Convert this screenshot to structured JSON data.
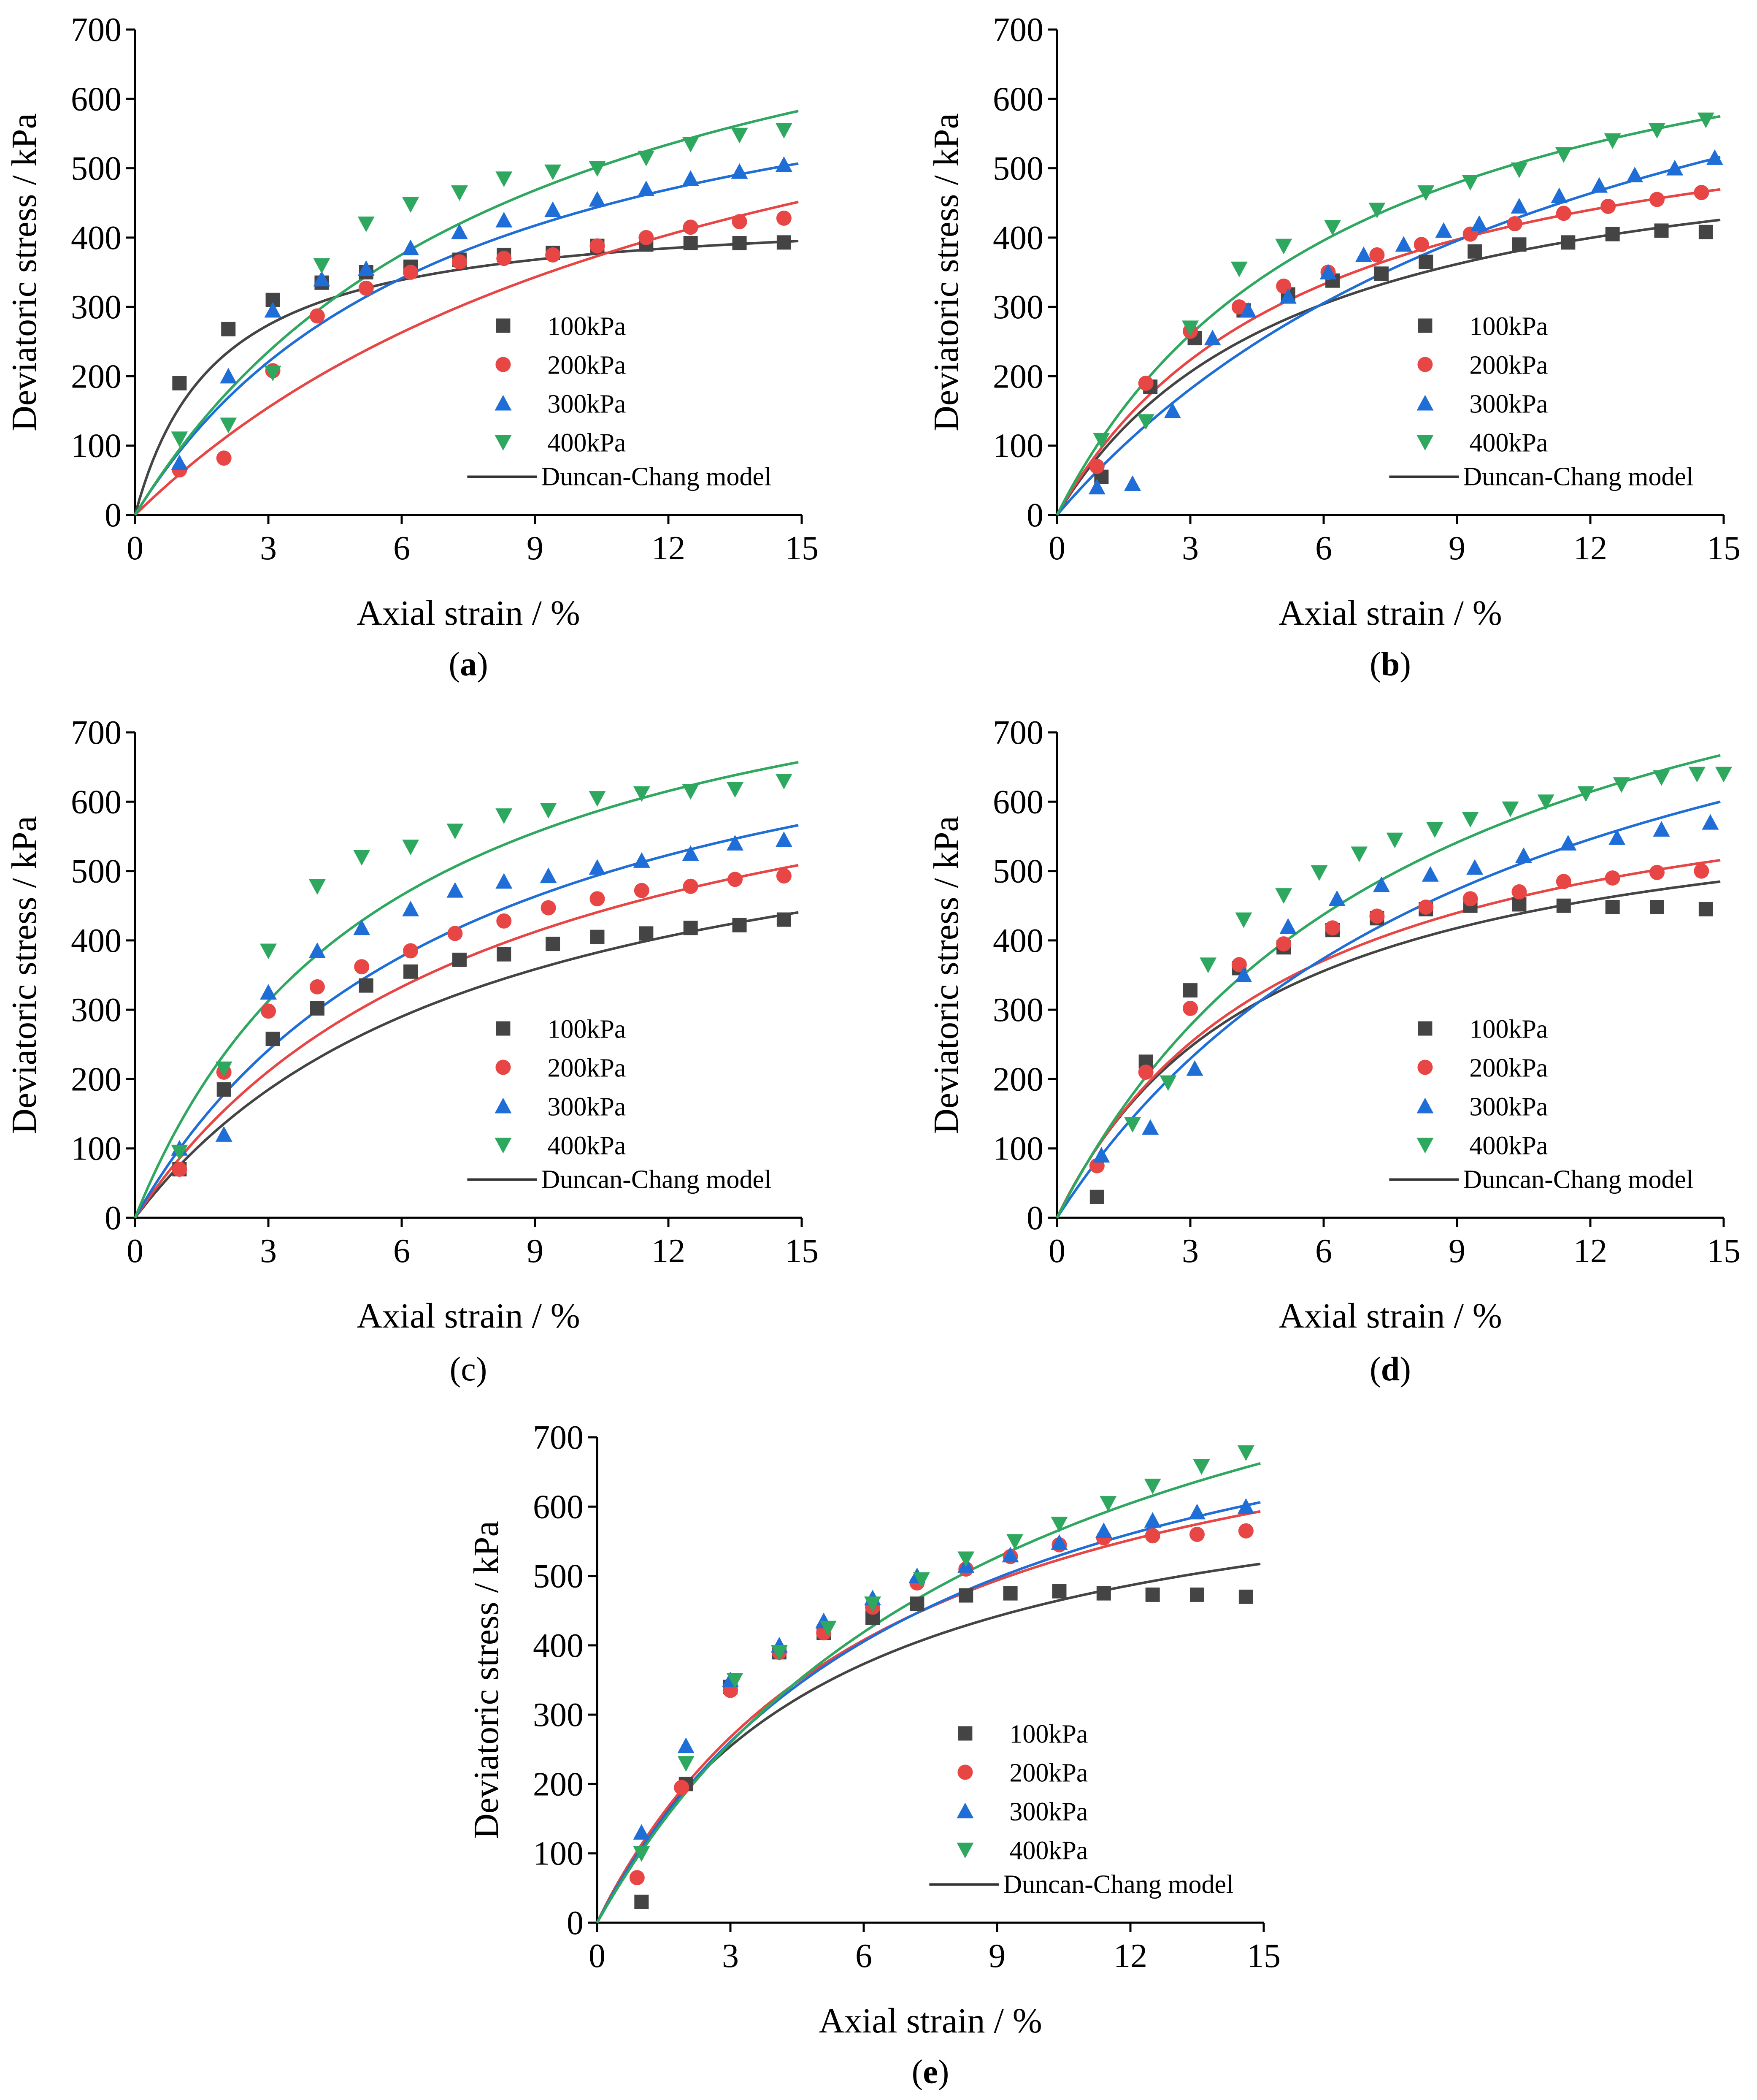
{
  "colors": {
    "s100": "#444444",
    "s200": "#e84545",
    "s300": "#1f6ed8",
    "s400": "#2fa85f",
    "model": "#333333"
  },
  "chart_data": [
    {
      "panel": "(a)",
      "panel_bold": "a",
      "type": "scatter",
      "xlabel": "Axial strain / %",
      "ylabel": "Deviatoric stress / kPa",
      "xlim": [
        0,
        15
      ],
      "ylim": [
        0,
        700
      ],
      "xticks": [
        "0",
        "3",
        "6",
        "9",
        "12",
        "15"
      ],
      "yticks": [
        "0",
        "100",
        "200",
        "300",
        "400",
        "500",
        "600",
        "700"
      ],
      "legend": [
        "100kPa",
        "200kPa",
        "300kPa",
        "400kPa",
        "Duncan-Chang model"
      ],
      "series": [
        {
          "name": "100kPa",
          "marker": "square",
          "color_key": "s100",
          "x": [
            1.0,
            2.1,
            3.1,
            4.2,
            5.2,
            6.2,
            7.3,
            8.3,
            9.4,
            10.4,
            11.5,
            12.5,
            13.6,
            14.6
          ],
          "y": [
            190,
            268,
            310,
            335,
            350,
            358,
            368,
            375,
            378,
            388,
            390,
            392,
            392,
            393
          ],
          "fit_a": 0.0042,
          "fit_b": 0.00225
        },
        {
          "name": "200kPa",
          "marker": "circle",
          "color_key": "s200",
          "x": [
            1.0,
            2.0,
            3.1,
            4.1,
            5.2,
            6.2,
            7.3,
            8.3,
            9.4,
            10.4,
            11.5,
            12.5,
            13.6,
            14.6
          ],
          "y": [
            65,
            82,
            208,
            287,
            327,
            350,
            365,
            370,
            375,
            388,
            400,
            415,
            423,
            428
          ],
          "fit_a": 0.0159,
          "fit_b": 0.00115
        },
        {
          "name": "300kPa",
          "marker": "triangle-up",
          "color_key": "s300",
          "x": [
            1.0,
            2.1,
            3.1,
            4.2,
            5.2,
            6.2,
            7.3,
            8.3,
            9.4,
            10.4,
            11.5,
            12.5,
            13.6,
            14.6
          ],
          "y": [
            75,
            200,
            295,
            340,
            355,
            385,
            408,
            425,
            440,
            455,
            470,
            485,
            495,
            505
          ],
          "fit_a": 0.0096,
          "fit_b": 0.00133
        },
        {
          "name": "400kPa",
          "marker": "triangle-down",
          "color_key": "s400",
          "x": [
            1.0,
            2.1,
            3.1,
            4.2,
            5.2,
            6.2,
            7.3,
            8.3,
            9.4,
            10.4,
            11.5,
            12.5,
            13.6,
            14.6
          ],
          "y": [
            110,
            130,
            205,
            360,
            420,
            448,
            465,
            485,
            495,
            500,
            515,
            535,
            548,
            555
          ],
          "fit_a": 0.0095,
          "fit_b": 0.00108
        }
      ]
    },
    {
      "panel": "(b)",
      "panel_bold": "b",
      "type": "scatter",
      "xlabel": "Axial strain / %",
      "ylabel": "Deviatoric stress / kPa",
      "xlim": [
        0,
        15
      ],
      "ylim": [
        0,
        700
      ],
      "xticks": [
        "0",
        "3",
        "6",
        "9",
        "12",
        "15"
      ],
      "yticks": [
        "0",
        "100",
        "200",
        "300",
        "400",
        "500",
        "600",
        "700"
      ],
      "legend": [
        "100kPa",
        "200kPa",
        "300kPa",
        "400kPa",
        "Duncan-Chang model"
      ],
      "series": [
        {
          "name": "100kPa",
          "marker": "square",
          "color_key": "s100",
          "x": [
            1.0,
            2.1,
            3.1,
            4.2,
            5.2,
            6.2,
            7.3,
            8.3,
            9.4,
            10.4,
            11.5,
            12.5,
            13.6,
            14.6
          ],
          "y": [
            55,
            185,
            255,
            295,
            318,
            338,
            348,
            365,
            380,
            390,
            393,
            405,
            410,
            408
          ],
          "fit_a": 0.0094,
          "fit_b": 0.00172
        },
        {
          "name": "200kPa",
          "marker": "circle",
          "color_key": "s200",
          "x": [
            0.9,
            2.0,
            3.0,
            4.1,
            5.1,
            6.1,
            7.2,
            8.2,
            9.3,
            10.3,
            11.4,
            12.4,
            13.5,
            14.5
          ],
          "y": [
            70,
            190,
            265,
            300,
            330,
            350,
            375,
            390,
            405,
            420,
            435,
            445,
            455,
            465
          ],
          "fit_a": 0.0088,
          "fit_b": 0.00154
        },
        {
          "name": "300kPa",
          "marker": "triangle-up",
          "color_key": "s300",
          "x": [
            0.9,
            1.7,
            2.6,
            3.5,
            4.3,
            5.2,
            6.1,
            6.9,
            7.8,
            8.7,
            9.5,
            10.4,
            11.3,
            12.2,
            13.0,
            13.9,
            14.8
          ],
          "y": [
            40,
            45,
            150,
            255,
            295,
            315,
            350,
            375,
            390,
            410,
            420,
            445,
            460,
            475,
            490,
            500,
            515
          ],
          "fit_a": 0.0134,
          "fit_b": 0.00104
        },
        {
          "name": "400kPa",
          "marker": "triangle-down",
          "color_key": "s400",
          "x": [
            1.0,
            2.0,
            3.0,
            4.1,
            5.1,
            6.2,
            7.2,
            8.3,
            9.3,
            10.4,
            11.4,
            12.5,
            13.5,
            14.6
          ],
          "y": [
            108,
            135,
            270,
            355,
            388,
            415,
            440,
            465,
            480,
            498,
            520,
            540,
            555,
            570
          ],
          "fit_a": 0.0079,
          "fit_b": 0.00121
        }
      ]
    },
    {
      "panel": "(c)",
      "panel_bold": "",
      "type": "scatter",
      "xlabel": "Axial strain / %",
      "ylabel": "Deviatoric stress / kPa",
      "xlim": [
        0,
        15
      ],
      "ylim": [
        0,
        700
      ],
      "xticks": [
        "0",
        "3",
        "6",
        "9",
        "12",
        "15"
      ],
      "yticks": [
        "0",
        "100",
        "200",
        "300",
        "400",
        "500",
        "600",
        "700"
      ],
      "legend": [
        "100kPa",
        "200kPa",
        "300kPa",
        "400kPa",
        "Duncan-Chang model"
      ],
      "series": [
        {
          "name": "100kPa",
          "marker": "square",
          "color_key": "s100",
          "x": [
            1.0,
            2.0,
            3.1,
            4.1,
            5.2,
            6.2,
            7.3,
            8.3,
            9.4,
            10.4,
            11.5,
            12.5,
            13.6,
            14.6
          ],
          "y": [
            70,
            185,
            258,
            302,
            335,
            355,
            372,
            380,
            395,
            405,
            410,
            418,
            422,
            430
          ],
          "fit_a": 0.0118,
          "fit_b": 0.00148
        },
        {
          "name": "200kPa",
          "marker": "circle",
          "color_key": "s200",
          "x": [
            1.0,
            2.0,
            3.0,
            4.1,
            5.1,
            6.2,
            7.2,
            8.3,
            9.3,
            10.4,
            11.4,
            12.5,
            13.5,
            14.6
          ],
          "y": [
            70,
            210,
            298,
            333,
            362,
            385,
            410,
            428,
            447,
            460,
            472,
            478,
            488,
            493
          ],
          "fit_a": 0.0104,
          "fit_b": 0.00127
        },
        {
          "name": "300kPa",
          "marker": "triangle-up",
          "color_key": "s300",
          "x": [
            1.0,
            2.0,
            3.0,
            4.1,
            5.1,
            6.2,
            7.2,
            8.3,
            9.3,
            10.4,
            11.4,
            12.5,
            13.5,
            14.6
          ],
          "y": [
            100,
            120,
            325,
            385,
            418,
            445,
            472,
            485,
            493,
            505,
            515,
            525,
            540,
            545
          ],
          "fit_a": 0.0089,
          "fit_b": 0.00117
        },
        {
          "name": "400kPa",
          "marker": "triangle-down",
          "color_key": "s400",
          "x": [
            1.0,
            2.0,
            3.0,
            4.1,
            5.1,
            6.2,
            7.2,
            8.3,
            9.3,
            10.4,
            11.4,
            12.5,
            13.5,
            14.6
          ],
          "y": [
            95,
            215,
            385,
            478,
            520,
            535,
            558,
            580,
            588,
            605,
            612,
            615,
            618,
            630
          ],
          "fit_a": 0.0063,
          "fit_b": 0.0011
        }
      ]
    },
    {
      "panel": "(d)",
      "panel_bold": "d",
      "type": "scatter",
      "xlabel": "Axial strain / %",
      "ylabel": "Deviatoric stress / kPa",
      "xlim": [
        0,
        15
      ],
      "ylim": [
        0,
        700
      ],
      "xticks": [
        "0",
        "3",
        "6",
        "9",
        "12",
        "15"
      ],
      "yticks": [
        "0",
        "100",
        "200",
        "300",
        "400",
        "500",
        "600",
        "700"
      ],
      "legend": [
        "100kPa",
        "200kPa",
        "300kPa",
        "400kPa",
        "Duncan-Chang model"
      ],
      "series": [
        {
          "name": "100kPa",
          "marker": "square",
          "color_key": "s100",
          "x": [
            0.9,
            2.0,
            3.0,
            4.1,
            5.1,
            6.2,
            7.2,
            8.3,
            9.3,
            10.4,
            11.4,
            12.5,
            13.5,
            14.6
          ],
          "y": [
            30,
            225,
            328,
            360,
            390,
            415,
            432,
            445,
            450,
            452,
            450,
            448,
            448,
            445
          ],
          "fit_a": 0.0075,
          "fit_b": 0.00156
        },
        {
          "name": "200kPa",
          "marker": "circle",
          "color_key": "s200",
          "x": [
            0.9,
            2.0,
            3.0,
            4.1,
            5.1,
            6.2,
            7.2,
            8.3,
            9.3,
            10.4,
            11.4,
            12.5,
            13.5,
            14.5
          ],
          "y": [
            75,
            210,
            302,
            365,
            395,
            418,
            435,
            448,
            460,
            470,
            485,
            490,
            498,
            500
          ],
          "fit_a": 0.0076,
          "fit_b": 0.00143
        },
        {
          "name": "300kPa",
          "marker": "triangle-up",
          "color_key": "s300",
          "x": [
            1.0,
            2.1,
            3.1,
            4.2,
            5.2,
            6.3,
            7.3,
            8.4,
            9.4,
            10.5,
            11.5,
            12.6,
            13.6,
            14.7
          ],
          "y": [
            90,
            130,
            215,
            350,
            420,
            460,
            480,
            495,
            505,
            522,
            540,
            548,
            560,
            570
          ],
          "fit_a": 0.0101,
          "fit_b": 0.00099
        },
        {
          "name": "400kPa",
          "marker": "triangle-down",
          "color_key": "s400",
          "x": [
            1.7,
            2.5,
            3.4,
            4.2,
            5.1,
            5.9,
            6.8,
            7.6,
            8.5,
            9.3,
            10.2,
            11.0,
            11.9,
            12.7,
            13.6,
            14.4,
            15.0
          ],
          "y": [
            135,
            195,
            365,
            430,
            465,
            498,
            525,
            545,
            560,
            575,
            590,
            600,
            612,
            625,
            635,
            640,
            640
          ],
          "fit_a": 0.0079,
          "fit_b": 0.00097
        }
      ]
    },
    {
      "panel": "(e)",
      "panel_bold": "e",
      "type": "scatter",
      "xlabel": "Axial strain / %",
      "ylabel": "Deviatoric stress / kPa",
      "xlim": [
        0,
        15
      ],
      "ylim": [
        0,
        700
      ],
      "xticks": [
        "0",
        "3",
        "6",
        "9",
        "12",
        "15"
      ],
      "yticks": [
        "0",
        "100",
        "200",
        "300",
        "400",
        "500",
        "600",
        "700"
      ],
      "legend": [
        "100kPa",
        "200kPa",
        "300kPa",
        "400kPa",
        "Duncan-Chang model"
      ],
      "series": [
        {
          "name": "100kPa",
          "marker": "square",
          "color_key": "s100",
          "x": [
            1.0,
            2.0,
            3.0,
            4.1,
            5.1,
            6.2,
            7.2,
            8.3,
            9.3,
            10.4,
            11.4,
            12.5,
            13.5,
            14.6
          ],
          "y": [
            30,
            200,
            340,
            390,
            418,
            440,
            460,
            472,
            475,
            478,
            475,
            473,
            473,
            470
          ],
          "fit_a": 0.0075,
          "fit_b": 0.00143
        },
        {
          "name": "200kPa",
          "marker": "circle",
          "color_key": "s200",
          "x": [
            0.9,
            1.9,
            3.0,
            4.1,
            5.1,
            6.2,
            7.2,
            8.3,
            9.3,
            10.4,
            11.4,
            12.5,
            13.5,
            14.6
          ],
          "y": [
            65,
            195,
            335,
            390,
            418,
            455,
            490,
            510,
            528,
            545,
            555,
            558,
            560,
            565
          ],
          "fit_a": 0.0077,
          "fit_b": 0.00117
        },
        {
          "name": "300kPa",
          "marker": "triangle-up",
          "color_key": "s300",
          "x": [
            1.0,
            2.0,
            3.0,
            4.1,
            5.1,
            6.2,
            7.2,
            8.3,
            9.3,
            10.4,
            11.4,
            12.5,
            13.5,
            14.6
          ],
          "y": [
            130,
            255,
            350,
            400,
            435,
            468,
            500,
            515,
            530,
            548,
            565,
            580,
            592,
            600
          ],
          "fit_a": 0.0082,
          "fit_b": 0.0011
        },
        {
          "name": "400kPa",
          "marker": "triangle-down",
          "color_key": "s400",
          "x": [
            1.0,
            2.0,
            3.1,
            4.1,
            5.2,
            6.2,
            7.3,
            8.3,
            9.4,
            10.4,
            11.5,
            12.5,
            13.6,
            14.6
          ],
          "y": [
            100,
            230,
            350,
            390,
            425,
            460,
            495,
            525,
            550,
            575,
            605,
            630,
            658,
            678
          ],
          "fit_a": 0.0088,
          "fit_b": 0.00092
        }
      ]
    }
  ]
}
